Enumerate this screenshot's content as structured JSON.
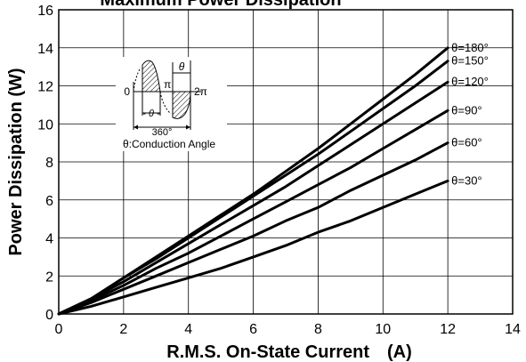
{
  "chart_data": {
    "type": "line",
    "title": "Maximum Power Dissipation",
    "xlabel": "R.M.S. On-State Current　(A)",
    "ylabel": "Power Dissipation (W)",
    "xlim": [
      0,
      14
    ],
    "ylim": [
      0,
      16
    ],
    "xticks": [
      0,
      2,
      4,
      6,
      8,
      10,
      12,
      14
    ],
    "yticks": [
      0,
      2,
      4,
      6,
      8,
      10,
      12,
      14,
      16
    ],
    "grid": true,
    "x": [
      0,
      1,
      2,
      3,
      4,
      5,
      6,
      7,
      8,
      9,
      10,
      11,
      12
    ],
    "series": [
      {
        "name": "θ=180°",
        "values": [
          0,
          0.8,
          1.9,
          3.0,
          4.1,
          5.2,
          6.3,
          7.5,
          8.7,
          10.0,
          11.3,
          12.6,
          14.0
        ]
      },
      {
        "name": "θ=150°",
        "values": [
          0,
          0.8,
          1.9,
          2.9,
          4.0,
          5.1,
          6.2,
          7.3,
          8.4,
          9.6,
          10.8,
          12.0,
          13.3
        ]
      },
      {
        "name": "θ=120°",
        "values": [
          0,
          0.8,
          1.7,
          2.7,
          3.7,
          4.7,
          5.7,
          6.7,
          7.8,
          8.9,
          10.0,
          11.1,
          12.2
        ]
      },
      {
        "name": "θ=90°",
        "values": [
          0,
          0.7,
          1.5,
          2.4,
          3.2,
          4.1,
          5.0,
          5.9,
          6.8,
          7.7,
          8.7,
          9.7,
          10.7
        ]
      },
      {
        "name": "θ=60°",
        "values": [
          0,
          0.6,
          1.3,
          2.0,
          2.7,
          3.4,
          4.1,
          4.9,
          5.6,
          6.5,
          7.3,
          8.1,
          9.0
        ]
      },
      {
        "name": "θ=30°",
        "values": [
          0,
          0.4,
          0.9,
          1.4,
          1.9,
          2.4,
          3.0,
          3.6,
          4.3,
          4.9,
          5.6,
          6.3,
          7.0
        ]
      }
    ],
    "annotations": {
      "inset_zero": "0",
      "inset_pi": "π",
      "inset_2pi": "2π",
      "inset_theta": "θ",
      "inset_theta_span": "- θ -",
      "inset_360": "360°",
      "inset_caption": "θ:Conduction Angle"
    },
    "line_color": "#000000"
  }
}
